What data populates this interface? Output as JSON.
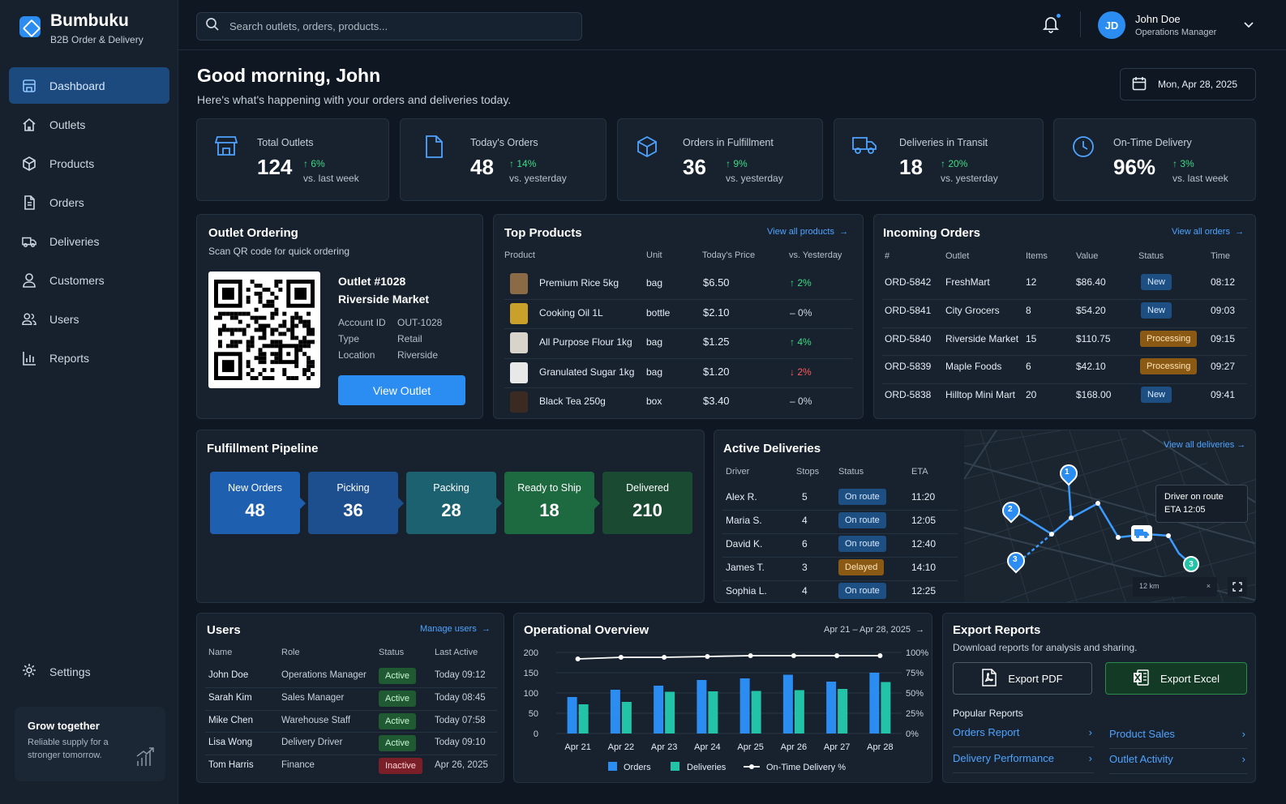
{
  "brand": {
    "name": "Bumbuku",
    "sub": "B2B Order & Delivery"
  },
  "nav": [
    {
      "label": "Dashboard",
      "icon": "store-icon"
    },
    {
      "label": "Outlets",
      "icon": "outlet-icon"
    },
    {
      "label": "Products",
      "icon": "box-icon"
    },
    {
      "label": "Orders",
      "icon": "document-icon"
    },
    {
      "label": "Deliveries",
      "icon": "truck-icon"
    },
    {
      "label": "Customers",
      "icon": "person-icon"
    },
    {
      "label": "Users",
      "icon": "people-icon"
    },
    {
      "label": "Reports",
      "icon": "chart-icon"
    }
  ],
  "settings": "Settings",
  "promo": {
    "title": "Grow together",
    "text": "Reliable supply for a stronger tomorrow."
  },
  "search": {
    "placeholder": "Search outlets, orders, products..."
  },
  "user": {
    "initials": "JD",
    "name": "John Doe",
    "role": "Operations Manager"
  },
  "greeting": {
    "title": "Good morning, John",
    "subtitle": "Here's what's happening with your orders and deliveries today."
  },
  "date": "Mon, Apr 28, 2025",
  "kpis": [
    {
      "label": "Total Outlets",
      "value": "124",
      "delta": "6%",
      "vs": "vs. last week"
    },
    {
      "label": "Today's Orders",
      "value": "48",
      "delta": "14%",
      "vs": "vs. yesterday"
    },
    {
      "label": "Orders in Fulfillment",
      "value": "36",
      "delta": "9%",
      "vs": "vs. yesterday"
    },
    {
      "label": "Deliveries in Transit",
      "value": "18",
      "delta": "20%",
      "vs": "vs. yesterday"
    },
    {
      "label": "On-Time Delivery",
      "value": "96%",
      "delta": "3%",
      "vs": "vs. last week"
    }
  ],
  "outlet": {
    "title": "Outlet Ordering",
    "subtitle": "Scan QR code for quick ordering",
    "name1": "Outlet #1028",
    "name2": "Riverside Market",
    "fields": [
      {
        "k": "Account ID",
        "v": "OUT-1028"
      },
      {
        "k": "Type",
        "v": "Retail"
      },
      {
        "k": "Location",
        "v": "Riverside"
      }
    ],
    "button": "View Outlet"
  },
  "products": {
    "title": "Top Products",
    "link": "View all products",
    "headers": [
      "Product",
      "Unit",
      "Today's Price",
      "vs. Yesterday"
    ],
    "rows": [
      {
        "name": "Premium Rice 5kg",
        "unit": "bag",
        "price": "$6.50",
        "change": "2%",
        "dir": "up"
      },
      {
        "name": "Cooking Oil 1L",
        "unit": "bottle",
        "price": "$2.10",
        "change": "0%",
        "dir": "flat"
      },
      {
        "name": "All Purpose Flour 1kg",
        "unit": "bag",
        "price": "$1.25",
        "change": "4%",
        "dir": "up"
      },
      {
        "name": "Granulated Sugar 1kg",
        "unit": "bag",
        "price": "$1.20",
        "change": "2%",
        "dir": "down"
      },
      {
        "name": "Black Tea 250g",
        "unit": "box",
        "price": "$3.40",
        "change": "0%",
        "dir": "flat"
      }
    ]
  },
  "incoming": {
    "title": "Incoming Orders",
    "link": "View all orders",
    "headers": [
      "#",
      "Outlet",
      "Items",
      "Value",
      "Status",
      "Time"
    ],
    "rows": [
      {
        "id": "ORD-5842",
        "outlet": "FreshMart",
        "items": "12",
        "value": "$86.40",
        "status": "New",
        "time": "08:12"
      },
      {
        "id": "ORD-5841",
        "outlet": "City Grocers",
        "items": "8",
        "value": "$54.20",
        "status": "New",
        "time": "09:03"
      },
      {
        "id": "ORD-5840",
        "outlet": "Riverside Market",
        "items": "15",
        "value": "$110.75",
        "status": "Processing",
        "time": "09:15"
      },
      {
        "id": "ORD-5839",
        "outlet": "Maple Foods",
        "items": "6",
        "value": "$42.10",
        "status": "Processing",
        "time": "09:27"
      },
      {
        "id": "ORD-5838",
        "outlet": "Hilltop Mini Mart",
        "items": "20",
        "value": "$168.00",
        "status": "New",
        "time": "09:41"
      }
    ]
  },
  "pipeline": {
    "title": "Fulfillment Pipeline",
    "stages": [
      {
        "label": "New Orders",
        "value": "48",
        "color": "#1f5fb0"
      },
      {
        "label": "Picking",
        "value": "36",
        "color": "#1d4f8e"
      },
      {
        "label": "Packing",
        "value": "28",
        "color": "#1c6170"
      },
      {
        "label": "Ready to Ship",
        "value": "18",
        "color": "#1e6a40"
      },
      {
        "label": "Delivered",
        "value": "210",
        "color": "#1b4a33"
      }
    ]
  },
  "deliveries": {
    "title": "Active Deliveries",
    "link": "View all deliveries",
    "headers": [
      "Driver",
      "Stops",
      "Status",
      "ETA"
    ],
    "rows": [
      {
        "driver": "Alex R.",
        "stops": "5",
        "status": "On route",
        "eta": "11:20"
      },
      {
        "driver": "Maria S.",
        "stops": "4",
        "status": "On route",
        "eta": "12:05"
      },
      {
        "driver": "David K.",
        "stops": "6",
        "status": "On route",
        "eta": "12:40"
      },
      {
        "driver": "James T.",
        "stops": "3",
        "status": "Delayed",
        "eta": "14:10"
      },
      {
        "driver": "Sophia L.",
        "stops": "4",
        "status": "On route",
        "eta": "12:25"
      }
    ],
    "map": {
      "tooltip_title": "Driver on route",
      "tooltip_eta": "ETA 12:05",
      "scale": "12 km",
      "pins": [
        "1",
        "2",
        "3",
        "3"
      ]
    }
  },
  "users": {
    "title": "Users",
    "link": "Manage users",
    "headers": [
      "Name",
      "Role",
      "Status",
      "Last Active"
    ],
    "rows": [
      {
        "name": "John Doe",
        "role": "Operations Manager",
        "status": "Active",
        "last": "Today 09:12"
      },
      {
        "name": "Sarah Kim",
        "role": "Sales Manager",
        "status": "Active",
        "last": "Today 08:45"
      },
      {
        "name": "Mike Chen",
        "role": "Warehouse Staff",
        "status": "Active",
        "last": "Today 07:58"
      },
      {
        "name": "Lisa Wong",
        "role": "Delivery Driver",
        "status": "Active",
        "last": "Today 09:10"
      },
      {
        "name": "Tom Harris",
        "role": "Finance",
        "status": "Inactive",
        "last": "Apr 26, 2025"
      }
    ]
  },
  "overview": {
    "title": "Operational Overview",
    "range": "Apr 21 – Apr 28, 2025"
  },
  "chart_data": {
    "type": "bar",
    "title": "Operational Overview",
    "categories": [
      "Apr 21",
      "Apr 22",
      "Apr 23",
      "Apr 24",
      "Apr 25",
      "Apr 26",
      "Apr 27",
      "Apr 28"
    ],
    "series": [
      {
        "name": "Orders",
        "type": "bar",
        "axis": "left",
        "color": "#2b8cf2",
        "values": [
          90,
          108,
          118,
          132,
          136,
          145,
          128,
          150
        ]
      },
      {
        "name": "Deliveries",
        "type": "bar",
        "axis": "left",
        "color": "#22c3a6",
        "values": [
          72,
          78,
          103,
          104,
          105,
          107,
          110,
          127
        ]
      },
      {
        "name": "On-Time Delivery %",
        "type": "line",
        "axis": "right",
        "color": "#ffffff",
        "values": [
          92,
          94,
          94,
          95,
          96,
          96,
          96,
          96
        ]
      }
    ],
    "y_left": {
      "ticks": [
        0,
        50,
        100,
        150,
        200
      ],
      "range": [
        0,
        200
      ]
    },
    "y_right": {
      "ticks": [
        "0%",
        "25%",
        "50%",
        "75%",
        "100%"
      ],
      "range": [
        0,
        100
      ]
    },
    "legend": "bottom"
  },
  "export": {
    "title": "Export Reports",
    "subtitle": "Download reports for analysis and sharing.",
    "pdf": "Export PDF",
    "excel": "Export Excel",
    "popular": "Popular Reports",
    "reports": [
      "Orders Report",
      "Product Sales",
      "Delivery Performance",
      "Outlet Activity"
    ]
  }
}
